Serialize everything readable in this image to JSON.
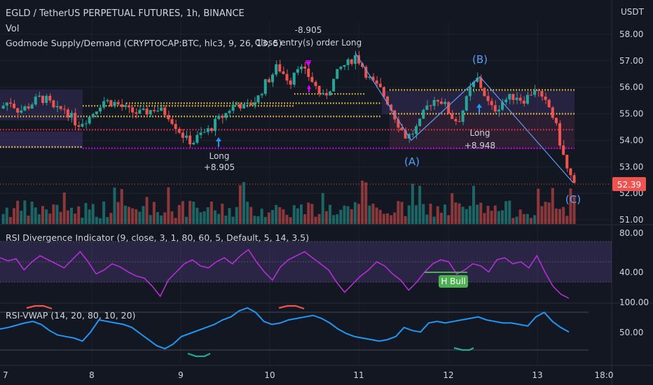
{
  "header": {
    "title": "EGLD / TetherUS PERPETUAL FUTURES, 1h, BINANCE",
    "vol_label": "Vol",
    "indicator_label": "Godmode Supply/Demand (CRYPTOCAP:BTC, hlc3, 9, 26, 13, 5)",
    "currency": "USDT"
  },
  "annotations": {
    "close_value": "-8.905",
    "close_label": "Close entry(s) order Long",
    "long1_label": "Long",
    "long1_value": "+8.905",
    "long2_label": "Long",
    "long2_value": "+8.948",
    "wave_a": "(A)",
    "wave_b": "(B)",
    "wave_c": "(C)"
  },
  "colors": {
    "background": "#131722",
    "grid": "#2a2e39",
    "bull": "#26a69a",
    "bear": "#ef5350",
    "rsi_line": "#b32ed6",
    "rsi_band": "#7e57c2",
    "rsi_vwap_line": "#2196f3",
    "wave_line": "#5b9cf6",
    "level_yellow": "#f7c948",
    "level_red": "#e5334b",
    "level_magenta": "#d500f9",
    "h_bull_bg": "#4caf50"
  },
  "price_pane": {
    "y_ticks": [
      "58.00",
      "57.00",
      "56.00",
      "55.00",
      "54.00",
      "53.00",
      "52.00",
      "51.00"
    ],
    "y_values": [
      58,
      57,
      56,
      55,
      54,
      53,
      52,
      51
    ],
    "current_price": "52.39"
  },
  "rsi_pane": {
    "label": "RSI Divergence Indicator (9, close, 3, 1, 80, 60, 5, Default, 5, 14, 3.5)",
    "y_ticks": [
      "80.00",
      "40.00"
    ],
    "h_bull_label": "H Bull"
  },
  "vwap_pane": {
    "label": "RSI-VWAP (14, 20, 80, 10, 20)",
    "y_ticks": [
      "100.00",
      "50.00"
    ]
  },
  "x_axis": {
    "labels": [
      "7",
      "8",
      "9",
      "10",
      "11",
      "12",
      "13",
      "18:0"
    ]
  },
  "chart_data": {
    "type": "candlestick",
    "title": "EGLD / TetherUS PERPETUAL FUTURES, 1h, BINANCE",
    "xlabel": "",
    "ylabel": "USDT",
    "ylim": [
      51.0,
      58.3
    ],
    "x_ticks": [
      "7",
      "8",
      "9",
      "10",
      "11",
      "12",
      "13",
      "18:0"
    ],
    "close_path": [
      [
        0,
        55.2
      ],
      [
        0.03,
        55.5
      ],
      [
        0.06,
        55.1
      ],
      [
        0.09,
        55.3
      ],
      [
        0.12,
        55.6
      ],
      [
        0.15,
        55.5
      ],
      [
        0.17,
        55.1
      ],
      [
        0.2,
        55.2
      ],
      [
        0.24,
        54.6
      ],
      [
        0.28,
        54.9
      ],
      [
        0.32,
        55.5
      ],
      [
        0.36,
        55.4
      ],
      [
        0.4,
        55.1
      ],
      [
        0.44,
        55.0
      ],
      [
        0.48,
        55.2
      ],
      [
        0.52,
        55.0
      ],
      [
        0.56,
        54.3
      ],
      [
        0.58,
        54.0
      ],
      [
        0.6,
        53.95
      ],
      [
        0.62,
        54.2
      ],
      [
        0.65,
        54.4
      ],
      [
        0.67,
        54.7
      ],
      [
        0.7,
        55.0
      ],
      [
        0.72,
        55.3
      ],
      [
        0.74,
        55.4
      ],
      [
        0.76,
        55.2
      ],
      [
        0.78,
        55.4
      ],
      [
        0.8,
        55.6
      ],
      [
        0.82,
        56.1
      ],
      [
        0.84,
        56.4
      ],
      [
        0.86,
        56.8
      ],
      [
        0.88,
        56.5
      ],
      [
        0.9,
        56.2
      ],
      [
        0.92,
        56.9
      ],
      [
        0.94,
        56.6
      ],
      [
        0.96,
        56.4
      ],
      [
        0.98,
        56.0
      ],
      [
        1.0,
        55.6
      ],
      [
        1.02,
        55.9
      ],
      [
        1.04,
        56.4
      ],
      [
        1.06,
        56.8
      ],
      [
        1.08,
        56.9
      ],
      [
        1.1,
        57.2
      ],
      [
        1.12,
        56.9
      ],
      [
        1.14,
        56.4
      ],
      [
        1.16,
        56.1
      ],
      [
        1.18,
        55.9
      ],
      [
        1.2,
        55.5
      ],
      [
        1.22,
        55.0
      ],
      [
        1.24,
        54.5
      ],
      [
        1.26,
        54.1
      ],
      [
        1.28,
        54.3
      ],
      [
        1.3,
        54.6
      ],
      [
        1.32,
        55.2
      ],
      [
        1.34,
        55.5
      ],
      [
        1.36,
        55.6
      ],
      [
        1.38,
        55.3
      ],
      [
        1.4,
        54.9
      ],
      [
        1.42,
        54.7
      ],
      [
        1.44,
        55.3
      ],
      [
        1.46,
        56.0
      ],
      [
        1.48,
        56.3
      ],
      [
        1.5,
        55.8
      ],
      [
        1.52,
        55.2
      ],
      [
        1.54,
        55.2
      ],
      [
        1.56,
        55.5
      ],
      [
        1.58,
        55.6
      ],
      [
        1.6,
        55.7
      ],
      [
        1.62,
        55.5
      ],
      [
        1.64,
        55.7
      ],
      [
        1.66,
        56.0
      ],
      [
        1.68,
        55.5
      ],
      [
        1.7,
        55.3
      ],
      [
        1.72,
        54.7
      ],
      [
        1.74,
        53.7
      ],
      [
        1.76,
        52.8
      ],
      [
        1.78,
        52.39
      ]
    ],
    "levels": [
      {
        "name": "supply_top",
        "value": 55.9
      },
      {
        "name": "mid_level_1",
        "value": 55.4
      },
      {
        "name": "mid_level_2",
        "value": 55.0
      },
      {
        "name": "mid_level_3",
        "value": 54.9
      },
      {
        "name": "demand_red",
        "value": 54.4
      },
      {
        "name": "demand_yellow",
        "value": 53.75
      },
      {
        "name": "demand_magenta",
        "value": 53.7
      }
    ],
    "abc_wave": [
      {
        "label": "start",
        "value": 57.3
      },
      {
        "label": "(A)",
        "value": 54.0
      },
      {
        "label": "(B)",
        "value": 56.4
      },
      {
        "label": "(C)",
        "value": 52.4
      }
    ],
    "rsi_series": [
      64,
      61,
      63,
      52,
      60,
      66,
      62,
      58,
      54,
      62,
      70,
      60,
      48,
      52,
      58,
      55,
      50,
      46,
      44,
      36,
      26,
      42,
      50,
      58,
      62,
      56,
      54,
      60,
      64,
      58,
      66,
      72,
      60,
      50,
      42,
      55,
      62,
      66,
      70,
      64,
      58,
      52,
      40,
      30,
      38,
      46,
      52,
      60,
      56,
      48,
      42,
      32,
      40,
      50,
      58,
      62,
      60,
      48,
      52,
      58,
      56,
      50,
      62,
      64,
      58,
      60,
      54,
      66,
      50,
      36,
      28,
      24
    ],
    "rsi_vwap_series": [
      50,
      52,
      55,
      58,
      60,
      56,
      48,
      42,
      40,
      38,
      34,
      46,
      62,
      60,
      58,
      56,
      52,
      44,
      36,
      28,
      24,
      30,
      40,
      44,
      48,
      52,
      56,
      62,
      66,
      74,
      78,
      72,
      60,
      56,
      58,
      62,
      64,
      66,
      68,
      64,
      58,
      50,
      44,
      40,
      38,
      36,
      34,
      36,
      40,
      52,
      48,
      46,
      58,
      60,
      58,
      60,
      62,
      64,
      66,
      62,
      60,
      58,
      58,
      56,
      54,
      66,
      72,
      60,
      52,
      46
    ]
  }
}
